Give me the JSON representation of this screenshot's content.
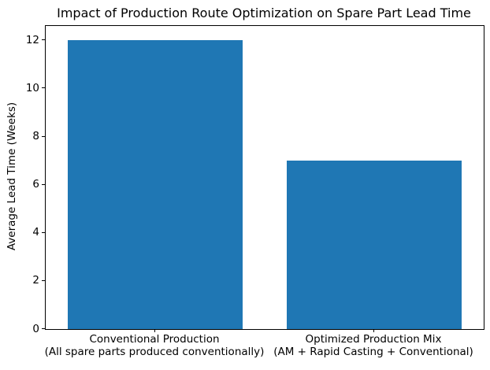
{
  "chart_data": {
    "type": "bar",
    "title": "Impact of Production Route Optimization on Spare Part Lead Time",
    "xlabel": "",
    "ylabel": "Average Lead Time (Weeks)",
    "categories": [
      "Conventional Production\n(All spare parts produced conventionally)",
      "Optimized Production Mix\n(AM + Rapid Casting + Conventional)"
    ],
    "values": [
      12,
      7
    ],
    "yticks": [
      0,
      2,
      4,
      6,
      8,
      10,
      12
    ],
    "ylim": [
      0,
      12.6
    ],
    "bar_width_fraction": 0.8,
    "bar_color": "#1f77b4",
    "axis_color": "#000000",
    "text_color": "#000000",
    "background_color": "#ffffff",
    "grid": false,
    "legend_position": "none"
  }
}
